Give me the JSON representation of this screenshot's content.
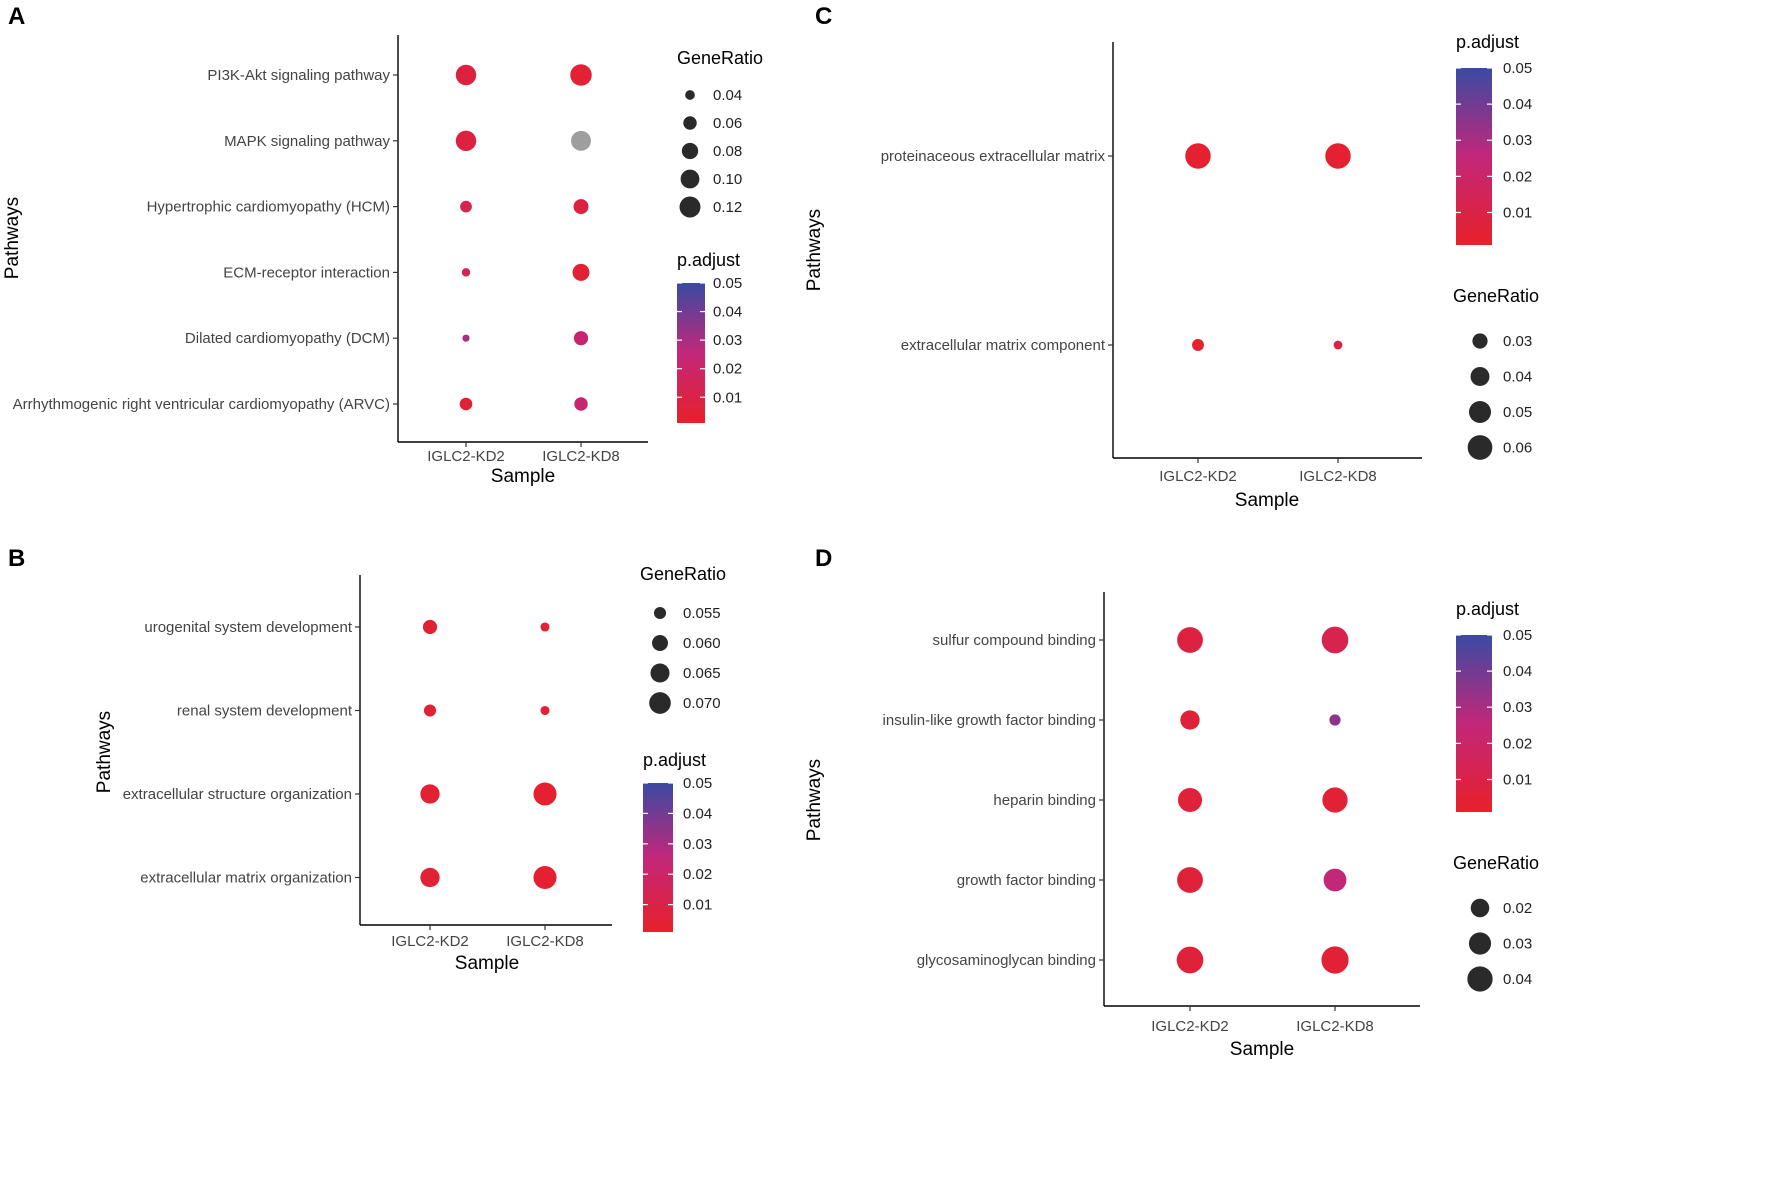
{
  "colors": {
    "low": "#e8202a",
    "mid": "#c2277a",
    "high": "#3a4aa3",
    "na": "#9e9e9e",
    "point_outline": "none",
    "legend_point": "#2a2a2a"
  },
  "chart_data": [
    {
      "panel": "A",
      "type": "scatter",
      "xlabel": "Sample",
      "ylabel": "Pathways",
      "categories_x": [
        "IGLC2-KD2",
        "IGLC2-KD8"
      ],
      "categories_y": [
        "PI3K-Akt signaling pathway",
        "MAPK signaling pathway",
        "Hypertrophic cardiomyopathy (HCM)",
        "ECM-receptor interaction",
        "Dilated cardiomyopathy (DCM)",
        "Arrhythmogenic right ventricular cardiomyopathy (ARVC)"
      ],
      "points": [
        {
          "x": "IGLC2-KD2",
          "y": "PI3K-Akt signaling pathway",
          "gene_ratio": 0.115,
          "p_adjust": 0.008
        },
        {
          "x": "IGLC2-KD8",
          "y": "PI3K-Akt signaling pathway",
          "gene_ratio": 0.125,
          "p_adjust": 0.004
        },
        {
          "x": "IGLC2-KD2",
          "y": "MAPK signaling pathway",
          "gene_ratio": 0.115,
          "p_adjust": 0.008
        },
        {
          "x": "IGLC2-KD8",
          "y": "MAPK signaling pathway",
          "gene_ratio": 0.11,
          "p_adjust": null
        },
        {
          "x": "IGLC2-KD2",
          "y": "Hypertrophic cardiomyopathy (HCM)",
          "gene_ratio": 0.05,
          "p_adjust": 0.012
        },
        {
          "x": "IGLC2-KD8",
          "y": "Hypertrophic cardiomyopathy (HCM)",
          "gene_ratio": 0.07,
          "p_adjust": 0.008
        },
        {
          "x": "IGLC2-KD2",
          "y": "ECM-receptor interaction",
          "gene_ratio": 0.035,
          "p_adjust": 0.015
        },
        {
          "x": "IGLC2-KD8",
          "y": "ECM-receptor interaction",
          "gene_ratio": 0.085,
          "p_adjust": 0.004
        },
        {
          "x": "IGLC2-KD2",
          "y": "Dilated cardiomyopathy (DCM)",
          "gene_ratio": 0.03,
          "p_adjust": 0.03
        },
        {
          "x": "IGLC2-KD8",
          "y": "Dilated cardiomyopathy (DCM)",
          "gene_ratio": 0.065,
          "p_adjust": 0.022
        },
        {
          "x": "IGLC2-KD2",
          "y": "Arrhythmogenic right ventricular cardiomyopathy (ARVC)",
          "gene_ratio": 0.055,
          "p_adjust": 0.004
        },
        {
          "x": "IGLC2-KD8",
          "y": "Arrhythmogenic right ventricular cardiomyopathy (ARVC)",
          "gene_ratio": 0.06,
          "p_adjust": 0.022
        }
      ],
      "legend_order": [
        "size",
        "color"
      ],
      "size_legend": {
        "title": "GeneRatio",
        "values": [
          0.04,
          0.06,
          0.08,
          0.1,
          0.12
        ],
        "labels": [
          "0.04",
          "0.06",
          "0.08",
          "0.10",
          "0.12"
        ],
        "domain": [
          0.02,
          0.13
        ]
      },
      "color_legend": {
        "title": "p.adjust",
        "range": [
          0.001,
          0.05
        ],
        "ticks": [
          0.01,
          0.02,
          0.03,
          0.04,
          0.05
        ],
        "labels": [
          "0.01",
          "0.02",
          "0.03",
          "0.04",
          "0.05"
        ]
      }
    },
    {
      "panel": "B",
      "type": "scatter",
      "xlabel": "Sample",
      "ylabel": "Pathways",
      "categories_x": [
        "IGLC2-KD2",
        "IGLC2-KD8"
      ],
      "categories_y": [
        "urogenital system development",
        "renal system development",
        "extracellular structure organization",
        "extracellular matrix organization"
      ],
      "points": [
        {
          "x": "IGLC2-KD2",
          "y": "urogenital system development",
          "gene_ratio": 0.0575,
          "p_adjust": 0.004
        },
        {
          "x": "IGLC2-KD8",
          "y": "urogenital system development",
          "gene_ratio": 0.052,
          "p_adjust": 0.004
        },
        {
          "x": "IGLC2-KD2",
          "y": "renal system development",
          "gene_ratio": 0.055,
          "p_adjust": 0.004
        },
        {
          "x": "IGLC2-KD8",
          "y": "renal system development",
          "gene_ratio": 0.052,
          "p_adjust": 0.004
        },
        {
          "x": "IGLC2-KD2",
          "y": "extracellular structure organization",
          "gene_ratio": 0.0655,
          "p_adjust": 0.004
        },
        {
          "x": "IGLC2-KD8",
          "y": "extracellular structure organization",
          "gene_ratio": 0.073,
          "p_adjust": 0.003
        },
        {
          "x": "IGLC2-KD2",
          "y": "extracellular matrix organization",
          "gene_ratio": 0.0655,
          "p_adjust": 0.004
        },
        {
          "x": "IGLC2-KD8",
          "y": "extracellular matrix organization",
          "gene_ratio": 0.073,
          "p_adjust": 0.003
        }
      ],
      "legend_order": [
        "size",
        "color"
      ],
      "size_legend": {
        "title": "GeneRatio",
        "values": [
          0.055,
          0.06,
          0.065,
          0.07
        ],
        "labels": [
          "0.055",
          "0.060",
          "0.065",
          "0.070"
        ],
        "domain": [
          0.05,
          0.075
        ]
      },
      "color_legend": {
        "title": "p.adjust",
        "range": [
          0.001,
          0.05
        ],
        "ticks": [
          0.01,
          0.02,
          0.03,
          0.04,
          0.05
        ],
        "labels": [
          "0.01",
          "0.02",
          "0.03",
          "0.04",
          "0.05"
        ]
      }
    },
    {
      "panel": "C",
      "type": "scatter",
      "xlabel": "Sample",
      "ylabel": "Pathways",
      "categories_x": [
        "IGLC2-KD2",
        "IGLC2-KD8"
      ],
      "categories_y": [
        "proteinaceous extracellular matrix",
        "extracellular matrix component"
      ],
      "points": [
        {
          "x": "IGLC2-KD2",
          "y": "proteinaceous extracellular matrix",
          "gene_ratio": 0.063,
          "p_adjust": 0.003
        },
        {
          "x": "IGLC2-KD8",
          "y": "proteinaceous extracellular matrix",
          "gene_ratio": 0.063,
          "p_adjust": 0.003
        },
        {
          "x": "IGLC2-KD2",
          "y": "extracellular matrix component",
          "gene_ratio": 0.023,
          "p_adjust": 0.003
        },
        {
          "x": "IGLC2-KD8",
          "y": "extracellular matrix component",
          "gene_ratio": 0.018,
          "p_adjust": 0.008
        }
      ],
      "legend_order": [
        "color",
        "size"
      ],
      "size_legend": {
        "title": "GeneRatio",
        "values": [
          0.03,
          0.04,
          0.05,
          0.06
        ],
        "labels": [
          "0.03",
          "0.04",
          "0.05",
          "0.06"
        ],
        "domain": [
          0.015,
          0.065
        ]
      },
      "color_legend": {
        "title": "p.adjust",
        "range": [
          0.001,
          0.05
        ],
        "ticks": [
          0.01,
          0.02,
          0.03,
          0.04,
          0.05
        ],
        "labels": [
          "0.01",
          "0.02",
          "0.03",
          "0.04",
          "0.05"
        ]
      }
    },
    {
      "panel": "D",
      "type": "scatter",
      "xlabel": "Sample",
      "ylabel": "Pathways",
      "categories_x": [
        "IGLC2-KD2",
        "IGLC2-KD8"
      ],
      "categories_y": [
        "sulfur compound binding",
        "insulin-like growth factor binding",
        "heparin binding",
        "growth factor binding",
        "glycosaminoglycan binding"
      ],
      "points": [
        {
          "x": "IGLC2-KD2",
          "y": "sulfur compound binding",
          "gene_ratio": 0.042,
          "p_adjust": 0.008
        },
        {
          "x": "IGLC2-KD8",
          "y": "sulfur compound binding",
          "gene_ratio": 0.045,
          "p_adjust": 0.012
        },
        {
          "x": "IGLC2-KD2",
          "y": "insulin-like growth factor binding",
          "gene_ratio": 0.022,
          "p_adjust": 0.006
        },
        {
          "x": "IGLC2-KD8",
          "y": "insulin-like growth factor binding",
          "gene_ratio": 0.005,
          "p_adjust": 0.035
        },
        {
          "x": "IGLC2-KD2",
          "y": "heparin binding",
          "gene_ratio": 0.036,
          "p_adjust": 0.006
        },
        {
          "x": "IGLC2-KD8",
          "y": "heparin binding",
          "gene_ratio": 0.04,
          "p_adjust": 0.005
        },
        {
          "x": "IGLC2-KD2",
          "y": "growth factor binding",
          "gene_ratio": 0.042,
          "p_adjust": 0.006
        },
        {
          "x": "IGLC2-KD8",
          "y": "growth factor binding",
          "gene_ratio": 0.032,
          "p_adjust": 0.025
        },
        {
          "x": "IGLC2-KD2",
          "y": "glycosaminoglycan binding",
          "gene_ratio": 0.045,
          "p_adjust": 0.006
        },
        {
          "x": "IGLC2-KD8",
          "y": "glycosaminoglycan binding",
          "gene_ratio": 0.047,
          "p_adjust": 0.005
        }
      ],
      "legend_order": [
        "color",
        "size"
      ],
      "size_legend": {
        "title": "GeneRatio",
        "values": [
          0.02,
          0.03,
          0.04
        ],
        "labels": [
          "0.02",
          "0.03",
          "0.04"
        ],
        "domain": [
          0.0,
          0.05
        ]
      },
      "color_legend": {
        "title": "p.adjust",
        "range": [
          0.001,
          0.05
        ],
        "ticks": [
          0.01,
          0.02,
          0.03,
          0.04,
          0.05
        ],
        "labels": [
          "0.01",
          "0.02",
          "0.03",
          "0.04",
          "0.05"
        ]
      }
    }
  ]
}
